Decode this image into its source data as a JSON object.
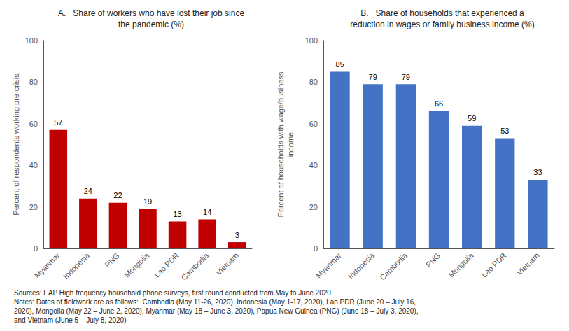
{
  "chart_data": [
    {
      "type": "bar",
      "title": "A.   Share of workers who have lost their job since\nthe pandemic (%)",
      "categories": [
        "Myanmar",
        "Indonesia",
        "PNG",
        "Mongolia",
        "Lao PDR",
        "Cambodia",
        "Vietnam"
      ],
      "values": [
        57,
        24,
        22,
        19,
        13,
        14,
        3
      ],
      "color": "#C00000",
      "ylabel": "Percent of respondents working pre-crisis",
      "ylim": [
        0,
        100
      ],
      "yticks": [
        0,
        20,
        40,
        60,
        80,
        100
      ],
      "grid": false,
      "data_labels": true
    },
    {
      "type": "bar",
      "title": "B.   Share of households that experienced a\nreduction in wages or family business income (%)",
      "categories": [
        "Myanmar",
        "Indonesia",
        "Cambodia",
        "PNG",
        "Mongolia",
        "Lao PDR",
        "Vietnam"
      ],
      "values": [
        85,
        79,
        79,
        66,
        59,
        53,
        33
      ],
      "color": "#4472C4",
      "ylabel": "Percent of households with wage/business\nincome",
      "ylim": [
        0,
        100
      ],
      "yticks": [
        0,
        20,
        40,
        60,
        80,
        100
      ],
      "grid": false,
      "data_labels": true
    }
  ],
  "footnote": [
    "Sources: EAP High frequency household phone surveys, first round conducted from May to June 2020.",
    "Notes: Dates of fieldwork are as follows:  Cambodia (May 11-26, 2020), Indonesia (May 1-17, 2020), Lao PDR (June 20 – July 16,",
    "2020), Mongolia (May 22 – June 2, 2020), Myanmar (May 18 – June 3, 2020), Papua New Guinea (PNG) (June 18 – July 3, 2020),",
    "and Vietnam (June 5 – July 8, 2020)"
  ]
}
